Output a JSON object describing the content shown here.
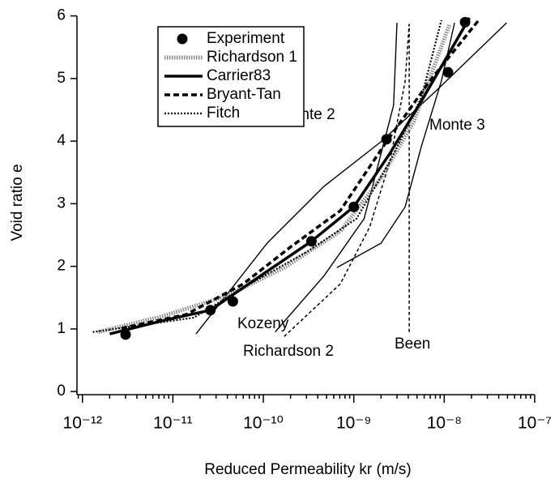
{
  "chart_data": {
    "type": "line",
    "xlabel": "Reduced Permeability  kr (m/s)",
    "ylabel": "Void ratio e",
    "xscale": "log",
    "xlim": [
      8.7e-13,
      1e-07
    ],
    "ylim": [
      -0.05,
      6.06
    ],
    "xticks": [
      {
        "value": 1e-12,
        "label": "10⁻¹²"
      },
      {
        "value": 1e-11,
        "label": "10⁻¹¹"
      },
      {
        "value": 1e-10,
        "label": "10⁻¹⁰"
      },
      {
        "value": 1e-09,
        "label": "10⁻⁹"
      },
      {
        "value": 1e-08,
        "label": "10⁻⁸"
      },
      {
        "value": 1e-07,
        "label": "10⁻⁷"
      }
    ],
    "yticks": [
      0,
      1,
      2,
      3,
      4,
      5,
      6
    ],
    "legend": "upper left",
    "series": [
      {
        "name": "Experiment",
        "marker": "circle",
        "color": "#000000",
        "x": [
          3e-12,
          2.6e-11,
          4.6e-11,
          3.4e-10,
          1e-09,
          2.3e-09,
          1.1e-08,
          1.7e-08
        ],
        "y": [
          0.91,
          1.3,
          1.44,
          2.4,
          2.95,
          4.03,
          5.1,
          5.9
        ]
      },
      {
        "name": "Richardson 1",
        "line_style": "dotted-bold",
        "color": "#8a8a8a",
        "x": [
          1.5e-12,
          7.6e-12,
          4e-11,
          1.7e-10,
          7.1e-10,
          2e-09,
          4.6e-09,
          1.15e-08
        ],
        "y": [
          0.95,
          1.2,
          1.53,
          1.98,
          2.56,
          3.41,
          4.31,
          5.87
        ]
      },
      {
        "name": "Carrier83",
        "line_style": "solid-bold",
        "color": "#000000",
        "x": [
          2e-12,
          7.6e-12,
          2.6e-11,
          1e-10,
          3.4e-10,
          1e-09,
          2.5e-09,
          5.6e-09,
          1.9e-08
        ],
        "y": [
          0.92,
          1.13,
          1.3,
          1.88,
          2.4,
          2.95,
          3.8,
          4.64,
          5.97
        ]
      },
      {
        "name": "Bryant-Tan",
        "line_style": "dashed-bold",
        "color": "#000000",
        "x": [
          2.7e-12,
          1.4e-11,
          6e-11,
          2e-10,
          7.1e-10,
          2.2e-09,
          6.9e-09,
          2.4e-08
        ],
        "y": [
          1.01,
          1.23,
          1.72,
          2.31,
          2.89,
          3.95,
          4.96,
          5.93
        ]
      },
      {
        "name": "Fitch",
        "line_style": "dotted",
        "color": "#000000",
        "x": [
          1.3e-12,
          1.7e-11,
          6e-11,
          3.1e-10,
          1.07e-09,
          2.5e-09,
          5.6e-09,
          9.3e-09
        ],
        "y": [
          0.95,
          1.18,
          1.66,
          2.24,
          2.76,
          3.67,
          4.7,
          5.93
        ]
      }
    ],
    "curves": [
      {
        "name": "Monte 2",
        "line_style": "solid",
        "color": "#000000",
        "x": [
          1.8e-11,
          1.1e-10,
          4.7e-10,
          2e-09,
          8.5e-09,
          4.9e-08
        ],
        "y": [
          0.92,
          2.37,
          3.28,
          3.99,
          4.83,
          5.89
        ]
      },
      {
        "name": "Monte 3",
        "line_style": "solid",
        "color": "#000000",
        "x": [
          6.5e-10,
          2e-09,
          3.7e-09,
          5.6e-09,
          9.3e-09,
          1.3e-08
        ],
        "y": [
          1.98,
          2.37,
          2.95,
          3.92,
          4.96,
          5.89
        ]
      },
      {
        "name": "Kozeny",
        "line_style": "solid",
        "color": "#000000",
        "x": [
          1.35e-10,
          4.7e-10,
          1.3e-09,
          2.75e-09,
          3e-09
        ],
        "y": [
          0.95,
          1.85,
          2.76,
          4.57,
          5.89
        ]
      },
      {
        "name": "Richardson 2",
        "line_style": "dashed",
        "color": "#000000",
        "x": [
          1.7e-10,
          7.1e-10,
          1.5e-09,
          2.5e-09,
          3.7e-09,
          4.1e-09
        ],
        "y": [
          0.88,
          1.72,
          2.63,
          3.67,
          4.96,
          5.87
        ]
      },
      {
        "name": "Been",
        "line_style": "dashed",
        "color": "#000000",
        "x": [
          4.1e-09,
          4.1e-09
        ],
        "y": [
          0.95,
          5.87
        ]
      }
    ]
  }
}
